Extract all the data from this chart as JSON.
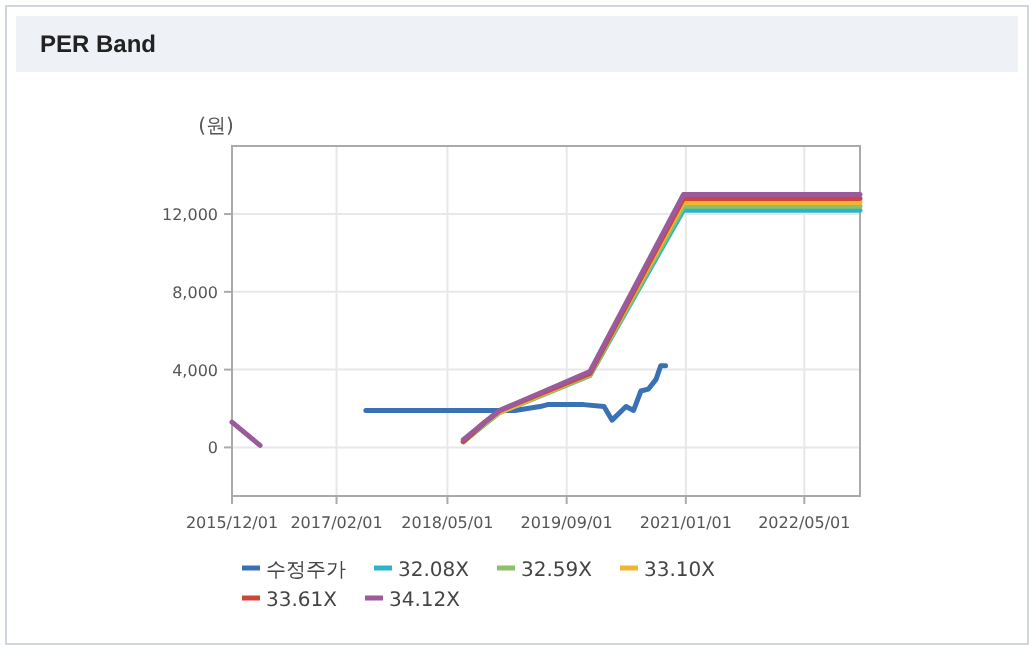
{
  "chart_data": {
    "type": "line",
    "title": "PER Band",
    "ylabel": "(원)",
    "x": [
      "2015-12-01",
      "2016-03-25",
      "2016-06-01",
      "2018-07-05",
      "2018-10-01",
      "2018-12-01",
      "2019-12-05",
      "2020-12-22",
      "2022-12-15"
    ],
    "xlim": [
      "2015-12-01",
      "2022-12-15"
    ],
    "xticks": [
      {
        "value": "2015-12-01",
        "label": "2015/12/01"
      },
      {
        "value": "2017-02-01",
        "label": "2017/02/01"
      },
      {
        "value": "2018-05-01",
        "label": "2018/05/01"
      },
      {
        "value": "2019-09-01",
        "label": "2019/09/01"
      },
      {
        "value": "2021-01-01",
        "label": "2021/01/01"
      },
      {
        "value": "2022-05-01",
        "label": "2022/05/01"
      }
    ],
    "ylim": [
      -2500,
      15500
    ],
    "yticks": [
      0,
      {
        "value": 4000,
        "label": "4,000"
      },
      {
        "value": 8000,
        "label": "8,000"
      },
      {
        "value": 12000,
        "label": "12,000"
      }
    ],
    "grid": true,
    "legend": "bottom",
    "series": [
      {
        "name": "수정주가",
        "color": "#3a70b5",
        "x": [
          "2017-06-01",
          "2019-02-01",
          "2019-05-15",
          "2019-06-15",
          "2019-11-09",
          "2020-02-01",
          "2020-03-05",
          "2020-05-01",
          "2020-06-01",
          "2020-07-01",
          "2020-08-01",
          "2020-09-01",
          "2020-09-20",
          "2020-10-10"
        ],
        "values": [
          1900,
          1900,
          2100,
          2200,
          2200,
          2100,
          1400,
          2100,
          1900,
          2900,
          3000,
          3500,
          4200,
          4200
        ]
      },
      {
        "name": "32.08X",
        "color": "#2ab5c8",
        "values": [
          null,
          null,
          null,
          300,
          1200,
          1800,
          3700,
          12200,
          12200
        ]
      },
      {
        "name": "32.59X",
        "color": "#8cc06a",
        "values": [
          null,
          null,
          null,
          300,
          1200,
          1800,
          3700,
          12400,
          12400
        ]
      },
      {
        "name": "33.10X",
        "color": "#f2b431",
        "values": [
          null,
          null,
          null,
          300,
          1300,
          1800,
          3800,
          12600,
          12600
        ]
      },
      {
        "name": "33.61X",
        "color": "#d0453a",
        "values": [
          null,
          null,
          null,
          300,
          1300,
          1900,
          3800,
          12800,
          12800
        ]
      },
      {
        "name": "34.12X",
        "color": "#9b5a9c",
        "values": [
          1300,
          100,
          null,
          400,
          1300,
          1900,
          3900,
          13000,
          13000
        ]
      }
    ]
  }
}
